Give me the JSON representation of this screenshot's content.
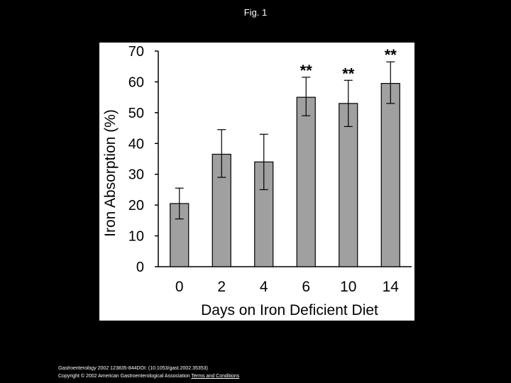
{
  "header": {
    "title": "Fig. 1"
  },
  "chart_data": {
    "type": "bar",
    "categories": [
      "0",
      "2",
      "4",
      "6",
      "10",
      "14"
    ],
    "values": [
      20.5,
      36.5,
      34,
      55,
      53,
      59.5
    ],
    "error_low": [
      15.5,
      29,
      25,
      49,
      45.5,
      53
    ],
    "error_high": [
      25.5,
      44.5,
      43,
      61.5,
      60.5,
      66.5
    ],
    "annotations": [
      "",
      "",
      "",
      "**",
      "**",
      "**"
    ],
    "title": "",
    "xlabel": "Days on Iron Deficient Diet",
    "ylabel": "Iron Absorption (%)",
    "ylim": [
      0,
      70
    ],
    "yticks": [
      0,
      10,
      20,
      30,
      40,
      50,
      60,
      70
    ],
    "grid": false,
    "bar_color": "#a0a0a0"
  },
  "footer": {
    "citation_journal": "Gastroenterology",
    "citation_rest": " 2002 123835-844DOI: (10.1053/gast.2002.35353)",
    "copyright": "Copyright © 2002 American Gastroenterological Association",
    "terms_link": "Terms and Conditions"
  }
}
